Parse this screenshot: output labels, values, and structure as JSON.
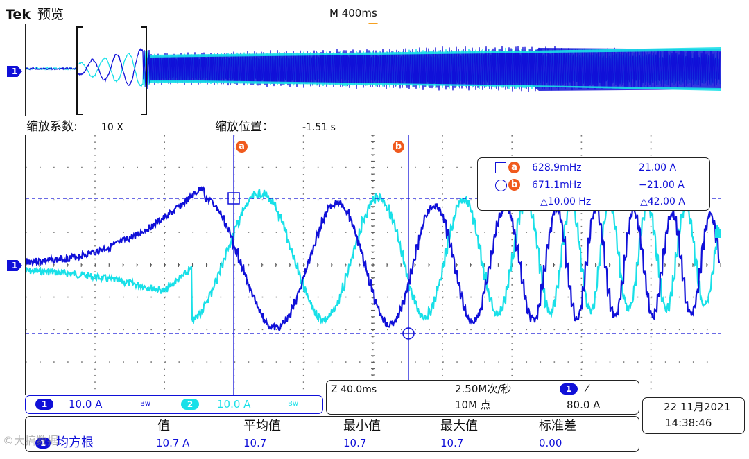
{
  "header": {
    "brand": "Tek",
    "mode": "预览",
    "timebase": "M 400ms"
  },
  "zoom_info": {
    "factor_label": "缩放系数:",
    "factor_value": "10 X",
    "position_label": "缩放位置：",
    "position_value": "-1.51 s"
  },
  "channel_marker": "1",
  "colors": {
    "ch1": "#1010d8",
    "ch2": "#19e0e8",
    "cursor_marker": "#f05a1e",
    "trigger_marker": "#f5a020"
  },
  "cursors": {
    "a_label": "a",
    "b_label": "b",
    "readout": {
      "a_freq": "628.9mHz",
      "a_value": "21.00 A",
      "b_freq": "671.1mHz",
      "b_value": "−21.00 A",
      "delta_freq": "△10.00 Hz",
      "delta_value": "△42.00 A"
    }
  },
  "channels": {
    "ch1": {
      "num": "1",
      "scale": "10.0 A",
      "bw": "Bw"
    },
    "ch2": {
      "num": "2",
      "scale": "10.0 A",
      "bw": "Bw"
    }
  },
  "acquisition": {
    "zoom_time": "Z 40.0ms",
    "sample_rate": "2.50M次/秒",
    "trigger_channel": "1",
    "trigger_slope": "⁄",
    "record_length": "10M 点",
    "trigger_level": "80.0 A"
  },
  "datetime": {
    "date": "22 11月2021",
    "time": "14:38:46"
  },
  "measurements": {
    "headers": [
      "值",
      "平均值",
      "最小值",
      "最大值",
      "标准差"
    ],
    "row_channel": "1",
    "row_label": "均方根",
    "values": [
      "10.7 A",
      "10.7",
      "10.7",
      "10.7",
      "0.00"
    ]
  },
  "watermark": "©大搞数据"
}
